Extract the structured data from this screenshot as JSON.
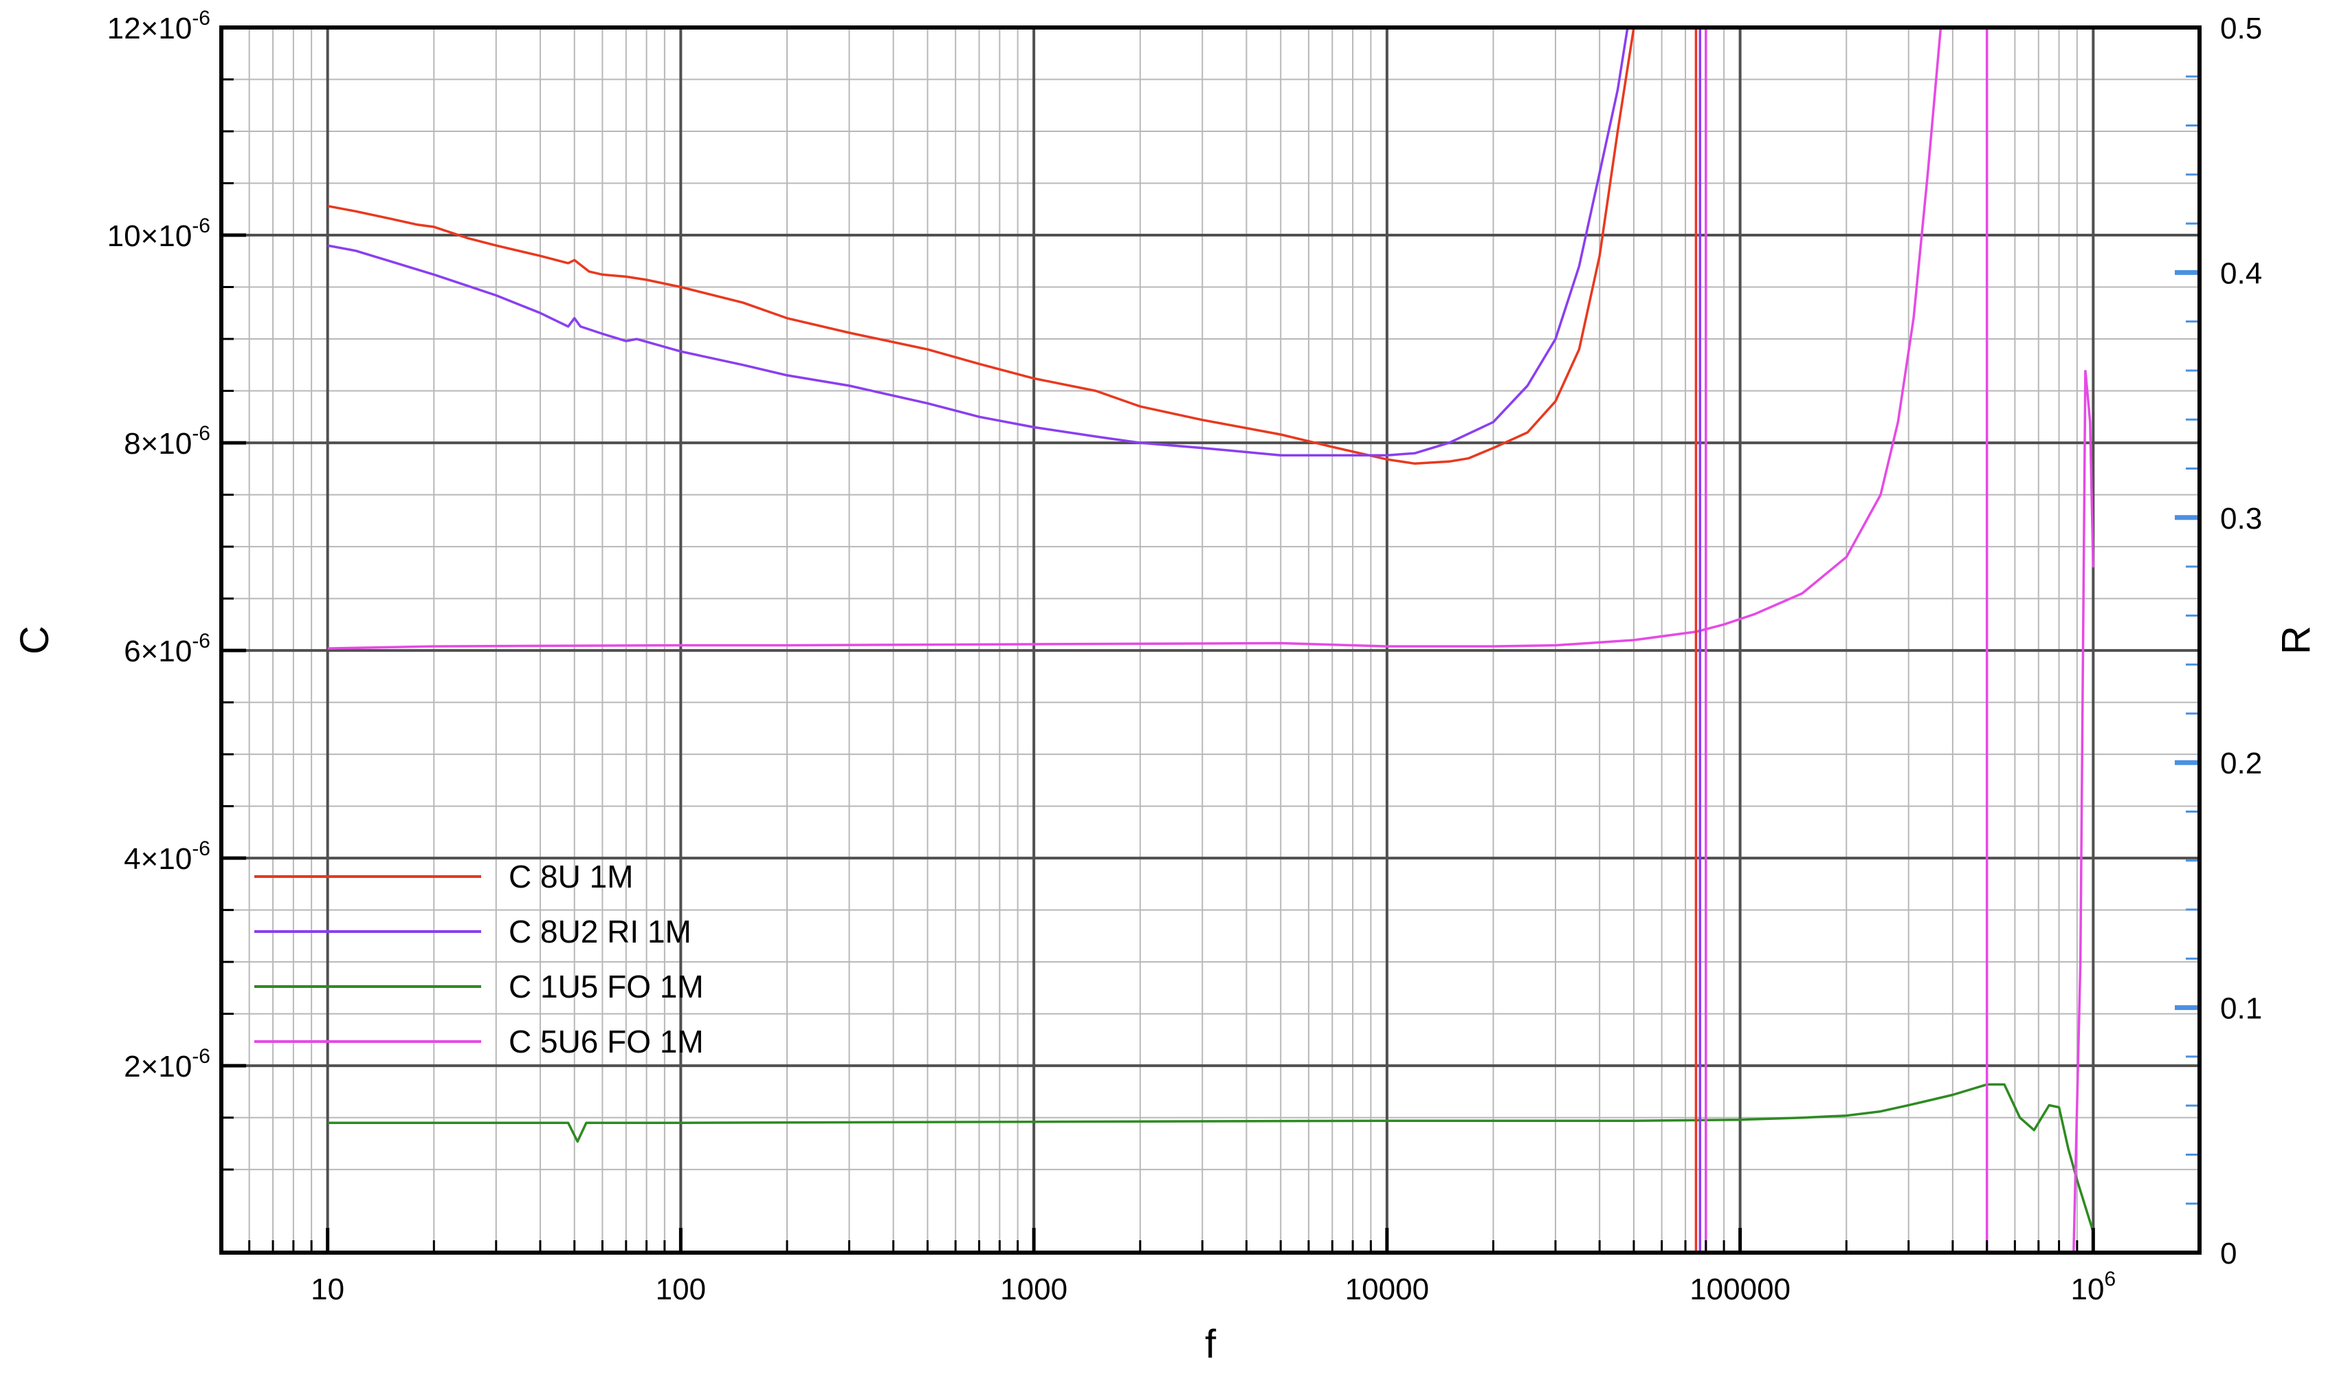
{
  "chart_data": {
    "type": "line",
    "xlabel": "f",
    "ylabel": "C",
    "y2label": "R",
    "x_scale": "log",
    "xlim": [
      5,
      2000000
    ],
    "ylim": [
      2e-07,
      1.2e-05
    ],
    "y2lim": [
      0,
      0.5
    ],
    "grid": true,
    "legend_position": "lower-left",
    "x_ticks": [
      {
        "value": 10,
        "label": "10",
        "sup": ""
      },
      {
        "value": 100,
        "label": "100",
        "sup": ""
      },
      {
        "value": 1000,
        "label": "1000",
        "sup": ""
      },
      {
        "value": 10000,
        "label": "10000",
        "sup": ""
      },
      {
        "value": 100000,
        "label": "100000",
        "sup": ""
      },
      {
        "value": 1000000,
        "label": "10",
        "sup": "6"
      }
    ],
    "y_ticks": [
      {
        "value": 2e-06,
        "label": "2×10",
        "sup": "-6"
      },
      {
        "value": 4e-06,
        "label": "4×10",
        "sup": "-6"
      },
      {
        "value": 6e-06,
        "label": "6×10",
        "sup": "-6"
      },
      {
        "value": 8e-06,
        "label": "8×10",
        "sup": "-6"
      },
      {
        "value": 1e-05,
        "label": "10×10",
        "sup": "-6"
      },
      {
        "value": 1.2e-05,
        "label": "12×10",
        "sup": "-6"
      }
    ],
    "y2_ticks": [
      {
        "value": 0,
        "label": "0"
      },
      {
        "value": 0.1,
        "label": "0.1"
      },
      {
        "value": 0.2,
        "label": "0.2"
      },
      {
        "value": 0.3,
        "label": "0.3"
      },
      {
        "value": 0.4,
        "label": "0.4"
      },
      {
        "value": 0.5,
        "label": "0.5"
      }
    ],
    "series": [
      {
        "name": "C 8U 1M",
        "color": "#e8391f",
        "points": [
          [
            10,
            1.028e-05
          ],
          [
            12,
            1.023e-05
          ],
          [
            15,
            1.016e-05
          ],
          [
            18,
            1.01e-05
          ],
          [
            20,
            1.008e-05
          ],
          [
            25,
            9.97e-06
          ],
          [
            30,
            9.9e-06
          ],
          [
            40,
            9.8e-06
          ],
          [
            48,
            9.73e-06
          ],
          [
            50,
            9.76e-06
          ],
          [
            55,
            9.65e-06
          ],
          [
            60,
            9.62e-06
          ],
          [
            70,
            9.6e-06
          ],
          [
            80,
            9.57e-06
          ],
          [
            100,
            9.5e-06
          ],
          [
            150,
            9.35e-06
          ],
          [
            200,
            9.2e-06
          ],
          [
            300,
            9.06e-06
          ],
          [
            500,
            8.9e-06
          ],
          [
            700,
            8.76e-06
          ],
          [
            1000,
            8.62e-06
          ],
          [
            1500,
            8.5e-06
          ],
          [
            2000,
            8.35e-06
          ],
          [
            3000,
            8.22e-06
          ],
          [
            5000,
            8.08e-06
          ],
          [
            7000,
            7.96e-06
          ],
          [
            10000,
            7.84e-06
          ],
          [
            12000,
            7.8e-06
          ],
          [
            15000,
            7.82e-06
          ],
          [
            17000,
            7.85e-06
          ],
          [
            20000,
            7.95e-06
          ],
          [
            25000,
            8.1e-06
          ],
          [
            30000,
            8.4e-06
          ],
          [
            35000,
            8.9e-06
          ],
          [
            40000,
            9.8e-06
          ],
          [
            45000,
            1.1e-05
          ],
          [
            50000,
            1.2e-05
          ]
        ]
      },
      {
        "name": "C 8U2 RI 1M",
        "color": "#8a3ff0",
        "points": [
          [
            10,
            9.9e-06
          ],
          [
            12,
            9.85e-06
          ],
          [
            15,
            9.75e-06
          ],
          [
            20,
            9.62e-06
          ],
          [
            30,
            9.42e-06
          ],
          [
            40,
            9.25e-06
          ],
          [
            48,
            9.12e-06
          ],
          [
            50,
            9.2e-06
          ],
          [
            52,
            9.12e-06
          ],
          [
            60,
            9.05e-06
          ],
          [
            70,
            8.98e-06
          ],
          [
            75,
            9e-06
          ],
          [
            100,
            8.88e-06
          ],
          [
            150,
            8.75e-06
          ],
          [
            200,
            8.65e-06
          ],
          [
            300,
            8.55e-06
          ],
          [
            500,
            8.38e-06
          ],
          [
            700,
            8.25e-06
          ],
          [
            1000,
            8.15e-06
          ],
          [
            1500,
            8.06e-06
          ],
          [
            2000,
            8e-06
          ],
          [
            3000,
            7.95e-06
          ],
          [
            5000,
            7.88e-06
          ],
          [
            7000,
            7.88e-06
          ],
          [
            10000,
            7.88e-06
          ],
          [
            12000,
            7.9e-06
          ],
          [
            15000,
            8e-06
          ],
          [
            20000,
            8.2e-06
          ],
          [
            25000,
            8.55e-06
          ],
          [
            30000,
            9e-06
          ],
          [
            35000,
            9.7e-06
          ],
          [
            40000,
            1.06e-05
          ],
          [
            45000,
            1.14e-05
          ],
          [
            48000,
            1.2e-05
          ]
        ]
      },
      {
        "name": "C 1U5 FO 1M",
        "color": "#2e8b22",
        "points": [
          [
            10,
            1.45e-06
          ],
          [
            20,
            1.45e-06
          ],
          [
            48,
            1.45e-06
          ],
          [
            51,
            1.27e-06
          ],
          [
            54,
            1.45e-06
          ],
          [
            100,
            1.45e-06
          ],
          [
            1000,
            1.46e-06
          ],
          [
            10000,
            1.47e-06
          ],
          [
            50000,
            1.47e-06
          ],
          [
            100000,
            1.48e-06
          ],
          [
            150000,
            1.5e-06
          ],
          [
            200000,
            1.52e-06
          ],
          [
            250000,
            1.56e-06
          ],
          [
            300000,
            1.62e-06
          ],
          [
            400000,
            1.72e-06
          ],
          [
            500000,
            1.82e-06
          ],
          [
            560000,
            1.82e-06
          ],
          [
            620000,
            1.5e-06
          ],
          [
            680000,
            1.38e-06
          ],
          [
            750000,
            1.62e-06
          ],
          [
            800000,
            1.6e-06
          ],
          [
            850000,
            1.2e-06
          ],
          [
            900000,
            9e-07
          ],
          [
            1000000,
            4e-07
          ]
        ]
      },
      {
        "name": "C 5U6 FO 1M",
        "color": "#e64ae6",
        "points": [
          [
            10,
            6.02e-06
          ],
          [
            20,
            6.04e-06
          ],
          [
            100,
            6.05e-06
          ],
          [
            200,
            6.05e-06
          ],
          [
            1000,
            6.06e-06
          ],
          [
            5000,
            6.07e-06
          ],
          [
            10000,
            6.04e-06
          ],
          [
            20000,
            6.04e-06
          ],
          [
            30000,
            6.05e-06
          ],
          [
            50000,
            6.1e-06
          ],
          [
            75000,
            6.18e-06
          ],
          [
            90000,
            6.25e-06
          ],
          [
            110000,
            6.35e-06
          ],
          [
            150000,
            6.55e-06
          ],
          [
            200000,
            6.9e-06
          ],
          [
            250000,
            7.5e-06
          ],
          [
            280000,
            8.2e-06
          ],
          [
            310000,
            9.2e-06
          ],
          [
            340000,
            1.06e-05
          ],
          [
            370000,
            1.2e-05
          ]
        ]
      }
    ],
    "vertical_lines": [
      {
        "x": 75000,
        "color": "#e8391f"
      },
      {
        "x": 77000,
        "color": "#8a3ff0"
      },
      {
        "x": 80000,
        "color": "#e64ae6"
      },
      {
        "x": 500000,
        "color": "#e64ae6"
      }
    ],
    "spike": {
      "color": "#e64ae6",
      "points": [
        [
          880000,
          2e-07
        ],
        [
          920000,
          3e-06
        ],
        [
          950000,
          8.7e-06
        ],
        [
          980000,
          8.2e-06
        ],
        [
          1000000,
          6.8e-06
        ]
      ]
    },
    "y2_markers": [
      0.1,
      0.2,
      0.3,
      0.4
    ]
  }
}
